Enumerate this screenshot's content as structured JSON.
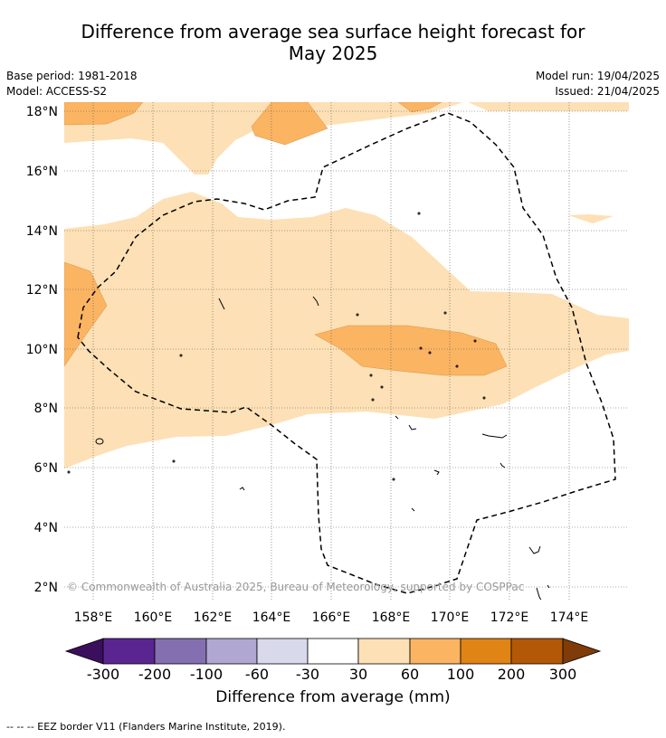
{
  "title_line1": "Difference from average sea surface height forecast for",
  "title_line2": "May 2025",
  "meta": {
    "base_period": "Base period: 1981-2018",
    "model": "Model: ACCESS-S2",
    "model_run": "Model run: 19/04/2025",
    "issued": "Issued: 21/04/2025"
  },
  "map": {
    "lat_labels": [
      "18°N",
      "16°N",
      "14°N",
      "12°N",
      "10°N",
      "8°N",
      "6°N",
      "4°N",
      "2°N"
    ],
    "lon_labels": [
      "158°E",
      "160°E",
      "162°E",
      "164°E",
      "166°E",
      "168°E",
      "170°E",
      "172°E",
      "174°E"
    ],
    "copyright": "© Commonwealth of Australia 2025, Bureau of Meteorology, supported by COSPPac"
  },
  "colorbar": {
    "tick_labels": [
      "-300",
      "-200",
      "-100",
      "-60",
      "-30",
      "30",
      "60",
      "100",
      "200",
      "300"
    ],
    "colors": [
      "#3b0f5c",
      "#5a2590",
      "#8470b0",
      "#b0a7d2",
      "#d9d9ec",
      "#ffffff",
      "#fde0b5",
      "#fbb462",
      "#e08416",
      "#b35806",
      "#7f3b08"
    ],
    "title": "Difference from average (mm)"
  },
  "footnote": "--  --  -- EEZ border V11 (Flanders Marine Institute, 2019)."
}
